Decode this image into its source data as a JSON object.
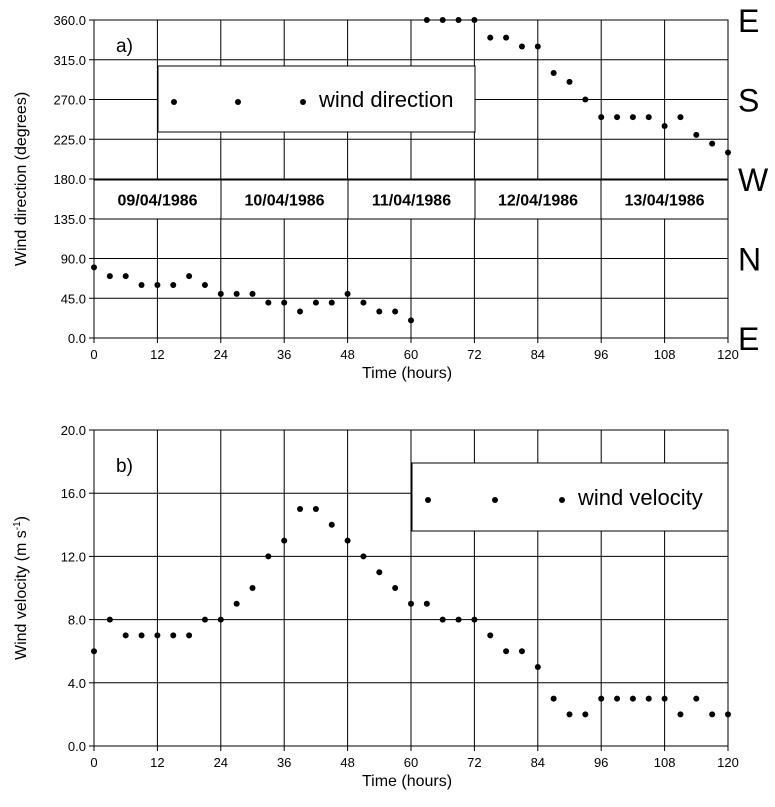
{
  "chart_data": [
    {
      "type": "scatter",
      "panel_label": "a)",
      "xlabel": "Time (hours)",
      "ylabel": "Wind direction (degrees)",
      "xlim": [
        0,
        120
      ],
      "ylim": [
        0,
        360
      ],
      "x_ticks": [
        "0",
        "12",
        "24",
        "36",
        "48",
        "60",
        "72",
        "84",
        "96",
        "108",
        "120"
      ],
      "y_ticks": [
        "0.0",
        "45.0",
        "90.0",
        "135.0",
        "180.0",
        "225.0",
        "270.0",
        "315.0",
        "360.0"
      ],
      "grid": true,
      "legend": "top-center",
      "compass_labels": [
        "E",
        "N",
        "W",
        "S",
        "E"
      ],
      "dates": [
        "09/04/1986",
        "10/04/1986",
        "11/04/1986",
        "12/04/1986",
        "13/04/1986"
      ],
      "series": [
        {
          "name": "wind direction",
          "x": [
            0,
            3,
            6,
            9,
            12,
            15,
            18,
            21,
            24,
            27,
            30,
            33,
            36,
            39,
            42,
            45,
            48,
            51,
            54,
            57,
            60,
            63,
            66,
            69,
            72,
            75,
            78,
            81,
            84,
            87,
            90,
            93,
            96,
            99,
            102,
            105,
            108,
            111,
            114,
            117,
            120
          ],
          "y": [
            80,
            70,
            70,
            60,
            60,
            60,
            70,
            60,
            50,
            50,
            50,
            40,
            40,
            30,
            40,
            40,
            50,
            40,
            30,
            30,
            20,
            360,
            360,
            360,
            360,
            340,
            340,
            330,
            330,
            300,
            290,
            270,
            250,
            250,
            250,
            250,
            240,
            250,
            230,
            220,
            210
          ]
        }
      ]
    },
    {
      "type": "scatter",
      "panel_label": "b)",
      "xlabel": "Time (hours)",
      "ylabel": "Wind velocity (m s",
      "ylabel_sup": "-1",
      "ylabel_end": ")",
      "xlim": [
        0,
        120
      ],
      "ylim": [
        0,
        20
      ],
      "x_ticks": [
        "0",
        "12",
        "24",
        "36",
        "48",
        "60",
        "72",
        "84",
        "96",
        "108",
        "120"
      ],
      "y_ticks": [
        "0.0",
        "4.0",
        "8.0",
        "12.0",
        "16.0",
        "20.0"
      ],
      "grid": true,
      "legend": "top-right",
      "series": [
        {
          "name": "wind velocity",
          "x": [
            0,
            3,
            6,
            9,
            12,
            15,
            18,
            21,
            24,
            27,
            30,
            33,
            36,
            39,
            42,
            45,
            48,
            51,
            54,
            57,
            60,
            63,
            66,
            69,
            72,
            75,
            78,
            81,
            84,
            87,
            90,
            93,
            96,
            99,
            102,
            105,
            108,
            111,
            114,
            117,
            120
          ],
          "y": [
            6,
            8,
            7,
            7,
            7,
            7,
            7,
            8,
            8,
            9,
            10,
            12,
            13,
            15,
            15,
            14,
            13,
            12,
            11,
            10,
            9,
            9,
            8,
            8,
            8,
            7,
            6,
            6,
            5,
            3,
            2,
            2,
            3,
            3,
            3,
            3,
            3,
            2,
            3,
            2,
            2
          ]
        }
      ]
    }
  ]
}
